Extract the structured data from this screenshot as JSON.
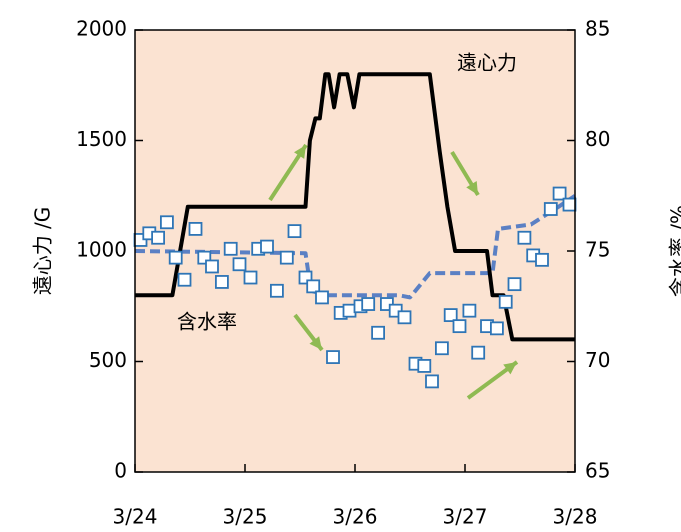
{
  "chart_data": {
    "type": "line",
    "y_label": "遠心力 /G",
    "y2_label": "含水率 /%",
    "xlim": [
      0,
      4
    ],
    "xticks": [
      {
        "value": 0,
        "label": "3/24"
      },
      {
        "value": 1,
        "label": "3/25"
      },
      {
        "value": 2,
        "label": "3/26"
      },
      {
        "value": 3,
        "label": "3/27"
      },
      {
        "value": 4,
        "label": "3/28"
      }
    ],
    "ylim": [
      0,
      2000
    ],
    "yticks": [
      0,
      500,
      1000,
      1500,
      2000
    ],
    "y2lim": [
      65,
      85
    ],
    "y2ticks": [
      65,
      70,
      75,
      80,
      85
    ],
    "background": "#fbe3d2",
    "series": [
      {
        "name": "遠心力",
        "type": "line",
        "color": "#000000",
        "x": [
          0,
          0.34,
          0.41,
          0.48,
          1.55,
          1.59,
          1.64,
          1.68,
          1.73,
          1.76,
          1.81,
          1.86,
          1.93,
          1.99,
          2.04,
          2.68,
          2.77,
          2.84,
          2.91,
          3.2,
          3.25,
          3.35,
          3.43,
          4
        ],
        "values": [
          800,
          800,
          1000,
          1200,
          1200,
          1500,
          1600,
          1600,
          1800,
          1800,
          1650,
          1800,
          1800,
          1650,
          1800,
          1800,
          1450,
          1200,
          1000,
          1000,
          800,
          800,
          600,
          600
        ]
      },
      {
        "name": "含水率",
        "type": "scatter",
        "axis": "y2",
        "color": "#2e75b6",
        "x": [
          0.05,
          0.13,
          0.21,
          0.29,
          0.37,
          0.45,
          0.55,
          0.63,
          0.7,
          0.79,
          0.87,
          0.95,
          1.05,
          1.12,
          1.2,
          1.29,
          1.38,
          1.45,
          1.55,
          1.62,
          1.7,
          1.8,
          1.87,
          1.95,
          2.05,
          2.12,
          2.21,
          2.29,
          2.37,
          2.45,
          2.55,
          2.63,
          2.7,
          2.79,
          2.87,
          2.95,
          3.04,
          3.12,
          3.2,
          3.29,
          3.37,
          3.45,
          3.54,
          3.62,
          3.7,
          3.78,
          3.86,
          3.95
        ],
        "values": [
          75.5,
          75.8,
          75.6,
          76.3,
          74.7,
          73.7,
          76,
          74.7,
          74.3,
          73.6,
          75.1,
          74.4,
          73.8,
          75.1,
          75.2,
          73.2,
          74.7,
          75.9,
          73.8,
          73.4,
          72.9,
          70.2,
          72.2,
          72.3,
          72.5,
          72.6,
          71.3,
          72.6,
          72.3,
          72,
          69.9,
          69.8,
          69.1,
          70.6,
          72.1,
          71.6,
          72.3,
          70.4,
          71.6,
          71.5,
          72.7,
          73.5,
          75.6,
          74.8,
          74.6,
          76.9,
          77.6,
          77.1
        ]
      },
      {
        "type": "dashed",
        "axis": "y2",
        "color": "#5b80c4",
        "x": [
          0,
          1.55,
          1.6,
          1.75,
          2.4,
          2.5,
          2.68,
          3.25,
          3.3,
          3.6,
          3.85,
          4
        ],
        "values": [
          75,
          74.9,
          73.2,
          73,
          73,
          72.9,
          74,
          74,
          76,
          76.2,
          77,
          77.5
        ]
      }
    ]
  }
}
